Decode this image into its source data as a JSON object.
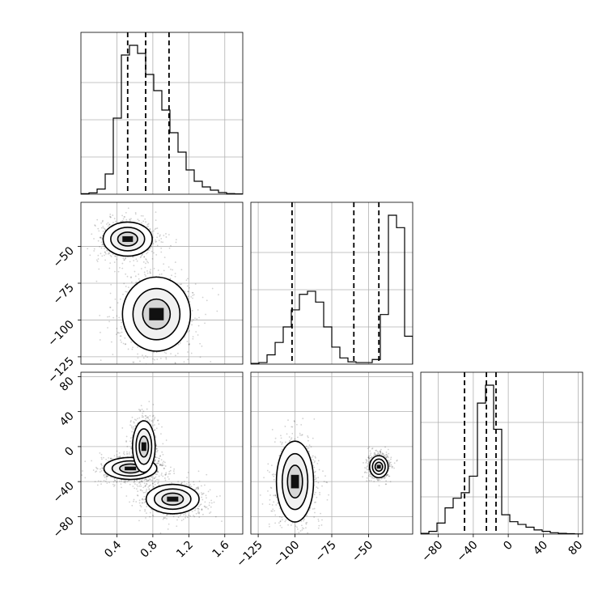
{
  "chart_data": {
    "type": "corner",
    "grid": true,
    "variables": [
      {
        "range": [
          0.0,
          1.8
        ],
        "ticks": [
          "0.4",
          "0.8",
          "1.2",
          "1.6"
        ],
        "tick_values": [
          0.4,
          0.8,
          1.2,
          1.6
        ],
        "quantiles": [
          0.52,
          0.72,
          0.98
        ]
      },
      {
        "range": [
          -130,
          -20
        ],
        "ticks": [
          "−50",
          "−75",
          "−100",
          "−125"
        ],
        "tick_values": [
          -50,
          -75,
          -100,
          -125
        ],
        "xticks": [
          "−125",
          "−100",
          "−75",
          "−50"
        ],
        "xtick_values": [
          -125,
          -100,
          -75,
          -50
        ],
        "quantiles": [
          -102,
          -60,
          -43
        ]
      },
      {
        "range": [
          -100,
          85
        ],
        "ticks": [
          "80",
          "40",
          "0",
          "−40",
          "−80"
        ],
        "tick_values": [
          80,
          40,
          0,
          -40,
          -80
        ],
        "xticks": [
          "−80",
          "−40",
          "0",
          "40",
          "80"
        ],
        "xtick_values": [
          -80,
          -40,
          0,
          40,
          80
        ],
        "quantiles": [
          -50,
          -25,
          -14
        ]
      }
    ],
    "histograms": [
      {
        "var": 0,
        "edges_start": 0.0,
        "bin_width": 0.09,
        "counts": [
          0.3,
          0.8,
          3.2,
          12.5,
          47,
          86,
          92,
          87,
          74,
          64,
          52,
          38,
          26,
          15,
          8,
          4.5,
          2.5,
          1,
          0.4,
          0.2
        ]
      },
      {
        "var": 1,
        "edges_start": -130,
        "bin_width": 5.5,
        "counts": [
          0.5,
          1,
          6,
          14,
          24,
          35,
          45,
          47,
          40,
          24,
          11,
          4,
          1.5,
          1,
          1,
          3,
          32,
          96,
          88,
          18
        ]
      },
      {
        "var": 2,
        "edges_start": -100,
        "bin_width": 9.25,
        "counts": [
          0.5,
          2,
          8,
          19,
          26,
          30,
          42,
          95,
          108,
          76,
          14,
          9,
          7,
          5,
          3,
          2,
          1,
          0.5,
          0.3,
          0.1
        ]
      }
    ],
    "contours_2d": [
      {
        "x": 0,
        "y": 1,
        "clusters": [
          {
            "center": [
              0.52,
              -45
            ],
            "spread": [
              0.13,
              5.5
            ]
          },
          {
            "center": [
              0.84,
              -96
            ],
            "spread": [
              0.18,
              12
            ]
          }
        ]
      },
      {
        "x": 0,
        "y": 2,
        "clusters": [
          {
            "center": [
              0.55,
              -25
            ],
            "spread": [
              0.14,
              6
            ]
          },
          {
            "center": [
              0.7,
              0
            ],
            "spread": [
              0.06,
              14
            ]
          },
          {
            "center": [
              1.02,
              -60
            ],
            "spread": [
              0.14,
              8
            ]
          }
        ]
      },
      {
        "x": 1,
        "y": 2,
        "clusters": [
          {
            "center": [
              -43,
              -23
            ],
            "spread": [
              3,
              6
            ]
          },
          {
            "center": [
              -100,
              -40
            ],
            "spread": [
              6,
              22
            ]
          }
        ]
      }
    ]
  }
}
